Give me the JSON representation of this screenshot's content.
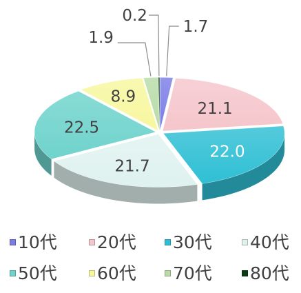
{
  "chart_data": {
    "type": "pie",
    "style": "3d-exploded",
    "categories": [
      "10代",
      "20代",
      "30代",
      "40代",
      "50代",
      "60代",
      "70代",
      "80代"
    ],
    "values": [
      1.7,
      21.1,
      22.0,
      21.7,
      22.5,
      8.9,
      1.9,
      0.2
    ],
    "data_labels": [
      "1.7",
      "21.1",
      "22.0",
      "21.7",
      "22.5",
      "8.9",
      "1.9",
      "0.2"
    ],
    "colors": [
      "#7b7ee6",
      "#f5c6cc",
      "#2fbfd4",
      "#dff2ef",
      "#6fd3cc",
      "#f7f7a0",
      "#b8dca8",
      "#0b3d12"
    ],
    "label_colors": [
      "#404040",
      "#404040",
      "#ffffff",
      "#404040",
      "#404040",
      "#404040",
      "#404040",
      "#404040"
    ],
    "legend_position": "bottom",
    "title": ""
  }
}
